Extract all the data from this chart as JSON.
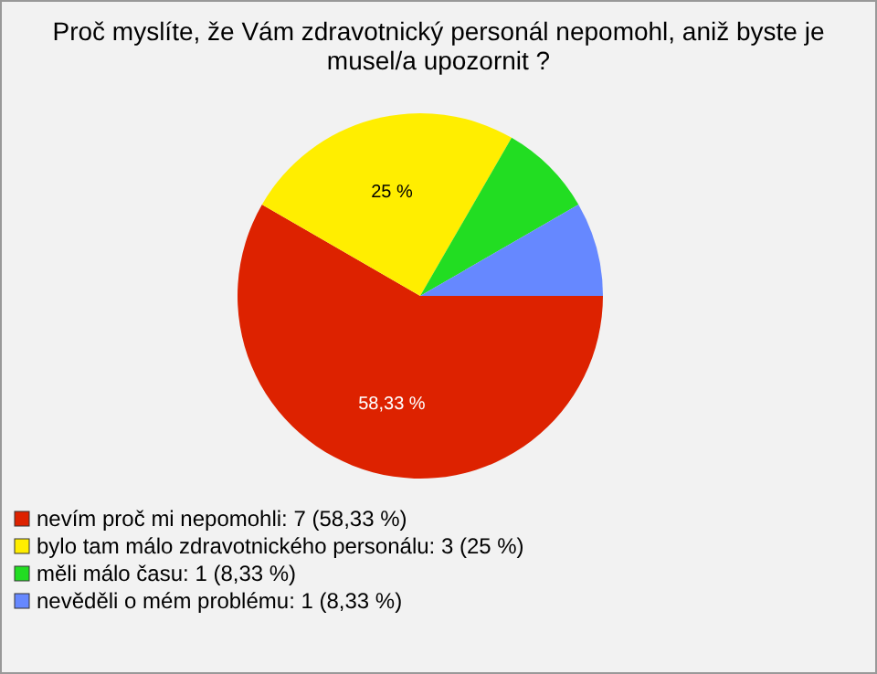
{
  "chart_data": {
    "type": "pie",
    "title": "Proč myslíte, že Vám zdravotnický personál nepomohl, aniž byste je musel/a upozornit ?",
    "categories": [
      "nevím proč mi nepomohli: 7 (58,33 %)",
      "bylo tam málo zdravotnického personálu: 3 (25 %)",
      "měli málo času: 1 (8,33 %)",
      "nevěděli o mém problému: 1 (8,33 %)"
    ],
    "values": [
      58.33,
      25,
      8.33,
      8.33
    ],
    "colors": [
      "#dd2200",
      "#ffee00",
      "#22dd22",
      "#6688ff"
    ],
    "value_labels": [
      "58,33 %",
      "25 %",
      null,
      null
    ],
    "legend": "bottom left"
  }
}
